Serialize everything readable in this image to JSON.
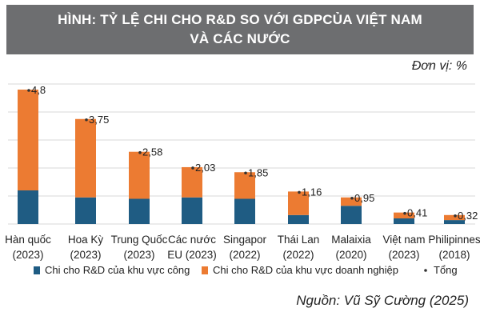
{
  "title": {
    "line1": "HÌNH: TỶ LỆ CHI CHO R&D SO VỚI GDPCỦA VIỆT NAM",
    "line2": "VÀ CÁC NƯỚC"
  },
  "unit_label": "Đơn vị: %",
  "source": "Nguồn: Vũ Sỹ Cường (2025)",
  "colors": {
    "public": "#1f5c83",
    "business": "#ec7b32",
    "total_marker": "#1f5c83",
    "title_bg": "#6d6e70",
    "grid": "#d9d9d9"
  },
  "chart_data": {
    "type": "bar",
    "stacked": true,
    "categories": [
      [
        "Hàn quốc",
        "(2023)"
      ],
      [
        "Hoa Kỳ",
        "(2023)"
      ],
      [
        "Trung Quốc",
        "(2023)"
      ],
      [
        "Các nước",
        "EU (2023)"
      ],
      [
        "Singapor",
        "(2022)"
      ],
      [
        "Thái Lan",
        "(2022)"
      ],
      [
        "Malaixia",
        "(2020)"
      ],
      [
        "Việt nam",
        "(2023)"
      ],
      [
        "Philipinnes",
        "(2018)"
      ]
    ],
    "series": [
      {
        "name": "Chi cho R&D của khu vực công",
        "values": [
          1.2,
          0.95,
          0.9,
          0.95,
          0.9,
          0.32,
          0.65,
          0.2,
          0.14
        ]
      },
      {
        "name": "Chi cho R&D của khu vực doanh nghiệp",
        "values": [
          3.6,
          2.8,
          1.68,
          1.08,
          0.95,
          0.84,
          0.3,
          0.21,
          0.18
        ]
      }
    ],
    "totals": {
      "name": "Tổng",
      "values": [
        4.8,
        3.75,
        2.58,
        2.03,
        1.85,
        1.16,
        0.95,
        0.41,
        0.32
      ],
      "labels": [
        "4,8",
        "3,75",
        "2,58",
        "2,03",
        "1,85",
        "1,16",
        "0,95",
        "0,41",
        "0,32"
      ]
    },
    "ylim": [
      0,
      5
    ],
    "gridlines": [
      0,
      1,
      2,
      3,
      4,
      5
    ],
    "grid": true,
    "legend_position": "bottom"
  }
}
